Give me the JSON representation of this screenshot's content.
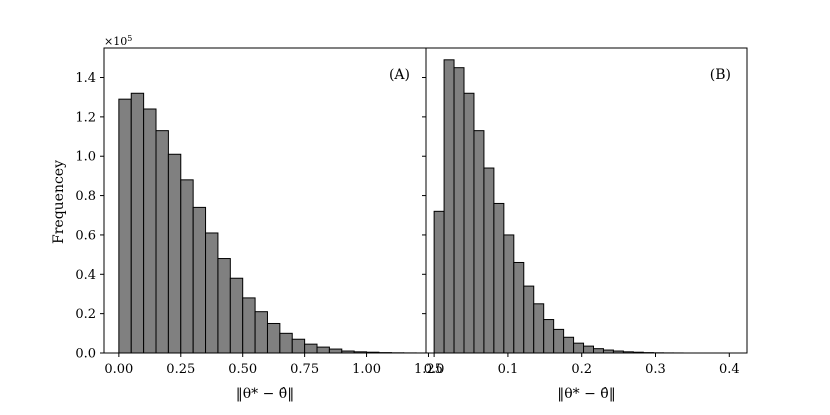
{
  "chart_data": {
    "type": "bar",
    "ylabel": "Frequencey",
    "y_multiplier": "×10",
    "y_multiplier_exponent": "5",
    "ylim": [
      0,
      1.55
    ],
    "yticks": [
      0.0,
      0.2,
      0.4,
      0.6,
      0.8,
      1.0,
      1.2,
      1.4
    ],
    "ytick_labels": [
      "0.0",
      "0.2",
      "0.4",
      "0.6",
      "0.8",
      "1.0",
      "1.2",
      "1.4"
    ],
    "grid": false,
    "panels": [
      {
        "label": "(A)",
        "xlabel": "‖θ* − θ̂‖",
        "xlim": [
          -0.06,
          1.24
        ],
        "xticks": [
          0.0,
          0.25,
          0.5,
          0.75,
          1.0,
          1.25
        ],
        "xtick_labels": [
          "0.00",
          "0.25",
          "0.50",
          "0.75",
          "1.00",
          "1.25"
        ],
        "bin_start": 0.0,
        "bin_width": 0.05,
        "values": [
          1.29,
          1.32,
          1.24,
          1.13,
          1.01,
          0.88,
          0.74,
          0.61,
          0.48,
          0.38,
          0.28,
          0.21,
          0.15,
          0.1,
          0.07,
          0.045,
          0.03,
          0.02,
          0.01,
          0.006,
          0.004,
          0.002,
          0.001,
          0.0005,
          0.0002
        ]
      },
      {
        "label": "(B)",
        "xlabel": "‖θ* − θ̂‖",
        "xlim": [
          -0.011,
          0.424
        ],
        "xticks": [
          0.0,
          0.1,
          0.2,
          0.3,
          0.4
        ],
        "xtick_labels": [
          "0.0",
          "0.1",
          "0.2",
          "0.3",
          "0.4"
        ],
        "bin_start": 0.0,
        "bin_width": 0.0135,
        "values": [
          0.72,
          1.49,
          1.45,
          1.32,
          1.13,
          0.94,
          0.76,
          0.6,
          0.46,
          0.34,
          0.25,
          0.17,
          0.12,
          0.08,
          0.05,
          0.035,
          0.022,
          0.015,
          0.01,
          0.006,
          0.004,
          0.002,
          0.001,
          0.0005,
          0.0003
        ]
      }
    ]
  }
}
